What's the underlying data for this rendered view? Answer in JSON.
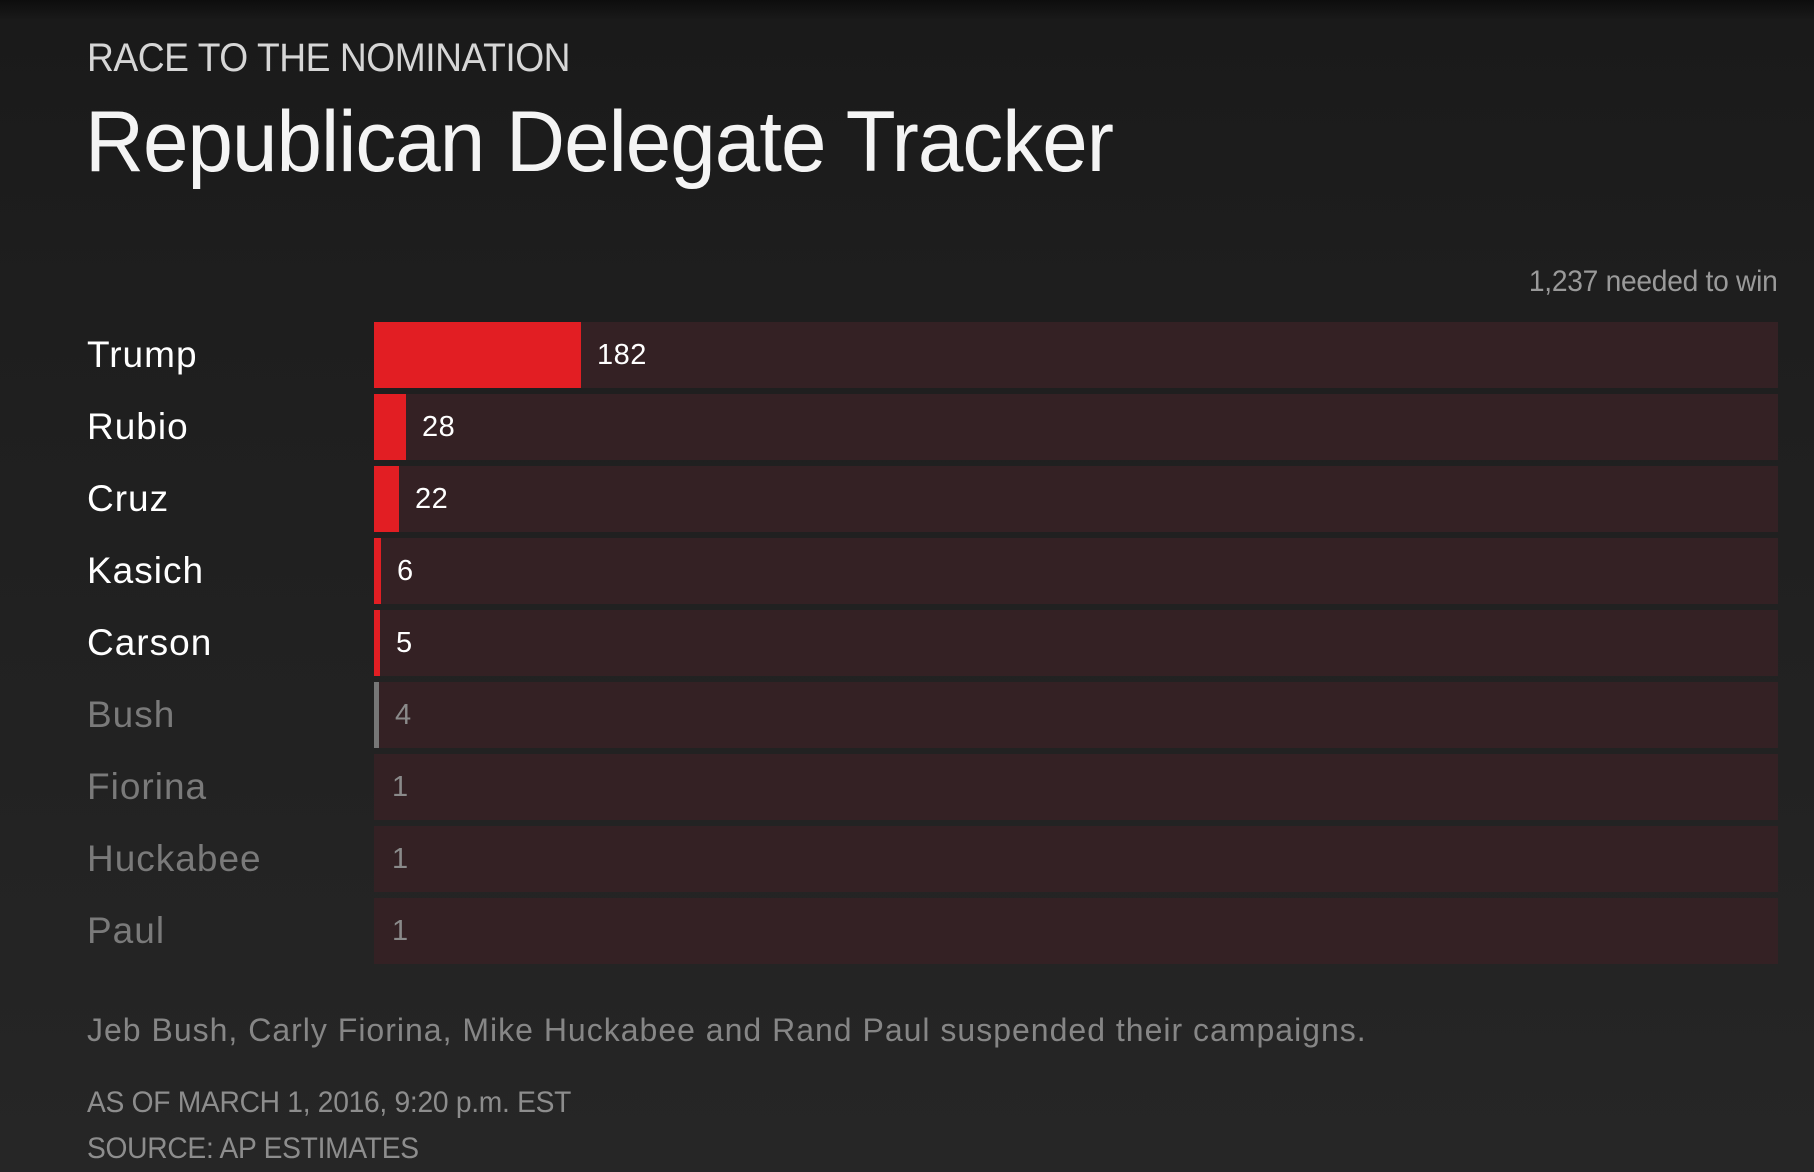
{
  "header": {
    "kicker": "RACE TO THE NOMINATION",
    "title": "Republican Delegate Tracker"
  },
  "chart_data": {
    "type": "bar",
    "orientation": "horizontal",
    "target_label": "1,237 needed to win",
    "xlim": [
      0,
      1237
    ],
    "categories": [
      "Trump",
      "Rubio",
      "Cruz",
      "Kasich",
      "Carson",
      "Bush",
      "Fiorina",
      "Huckabee",
      "Paul"
    ],
    "values": [
      182,
      28,
      22,
      6,
      5,
      4,
      1,
      1,
      1
    ],
    "active": [
      true,
      true,
      true,
      true,
      true,
      false,
      false,
      false,
      false
    ],
    "data_labels": [
      "182",
      "28",
      "22",
      "6",
      "5",
      "4",
      "1",
      "1",
      "1"
    ]
  },
  "footer": {
    "note": "Jeb Bush, Carly Fiorina, Mike Huckabee and Rand Paul suspended their campaigns.",
    "as_of": "AS OF MARCH 1, 2016, 9:20 p.m. EST",
    "source": "SOURCE: AP ESTIMATES"
  },
  "colors": {
    "background": "#1e1e1e",
    "active_bar": "#e21e23",
    "inactive_bar": "#777777",
    "track": "#342124"
  }
}
